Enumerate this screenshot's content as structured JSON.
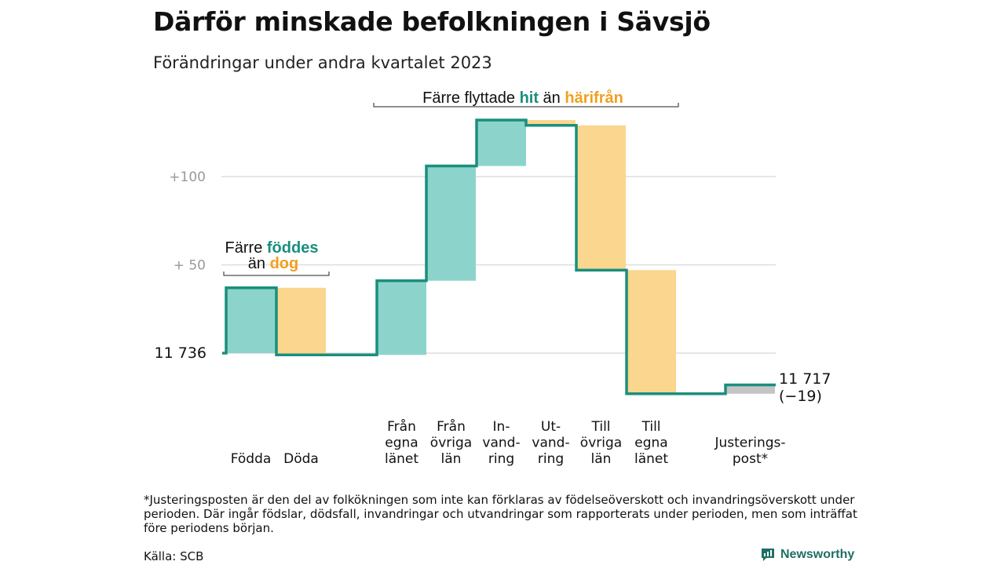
{
  "chart_data": {
    "type": "waterfall",
    "title": "Därför minskade befolkningen i Sävsjö",
    "subtitle": "Förändringar under andra kvartalet 2023",
    "start_label": "11  736",
    "start_value": 0,
    "end_label_value": "11 717",
    "end_label_change": "(−19)",
    "y_ticks": [
      {
        "value": 50,
        "label": "+  50"
      },
      {
        "value": 100,
        "label": "+100"
      }
    ],
    "ylim": [
      -25,
      138
    ],
    "steps": [
      {
        "category": [
          "Födda"
        ],
        "change": 37,
        "sign": "plus"
      },
      {
        "category": [
          "Döda"
        ],
        "change": -38,
        "sign": "minus"
      },
      {
        "category": [
          "Från",
          "egna",
          "länet"
        ],
        "change": 42,
        "sign": "plus"
      },
      {
        "category": [
          "Från",
          "övriga",
          "län"
        ],
        "change": 65,
        "sign": "plus"
      },
      {
        "category": [
          "In-",
          "vand-",
          "ring"
        ],
        "change": 26,
        "sign": "plus"
      },
      {
        "category": [
          "Ut-",
          "vand-",
          "ring"
        ],
        "change": -3,
        "sign": "minus"
      },
      {
        "category": [
          "Till",
          "övriga",
          "län"
        ],
        "change": -82,
        "sign": "minus"
      },
      {
        "category": [
          "Till",
          "egna",
          "länet"
        ],
        "change": -70,
        "sign": "minus"
      },
      {
        "category": [
          "Justerings-",
          "post*"
        ],
        "change": 5,
        "sign": "neutral"
      }
    ],
    "annotations": {
      "births": {
        "line1": "Färre",
        "word1": "föddes",
        "line2": "än",
        "word2": "dog"
      },
      "migration": {
        "prefix": "Färre flyttade",
        "word1": "hit",
        "middle": "än",
        "word2": "härifrån"
      }
    },
    "colors": {
      "plus": "#8cd4cb",
      "minus": "#fad68e",
      "neutral": "#c4c4c4",
      "line": "#1a8f7d",
      "hit": "#1a8f7d",
      "harifran": "#f0a020",
      "grid": "#dddddd",
      "tick": "#999999"
    }
  },
  "footnote": "*Justeringsposten är den del av folkökningen som inte kan förklaras av födelseöverskott och invandringsöverskott under perioden. Där ingår födslar, dödsfall, invandringar och utvandringar som rapporterats under perioden, men som inträffat före periodens början.",
  "source": "Källa: SCB",
  "brand": {
    "name": "Newsworthy",
    "icon": "newsworthy-logo-icon"
  }
}
